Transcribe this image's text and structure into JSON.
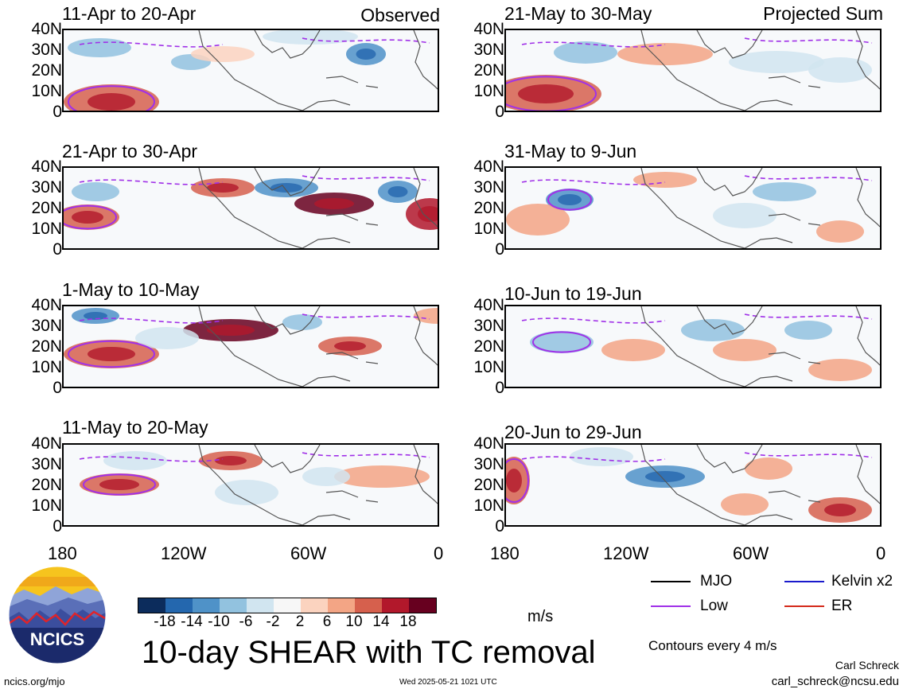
{
  "observed_label": "Observed",
  "projected_label": "Projected Sum",
  "panels": {
    "obs1": "11-Apr to 20-Apr",
    "obs2": "21-Apr to 30-Apr",
    "obs3": "1-May to 10-May",
    "obs4": "11-May to 20-May",
    "proj1": "21-May to 30-May",
    "proj2": "31-May to 9-Jun",
    "proj3": "10-Jun to 19-Jun",
    "proj4": "20-Jun to 29-Jun"
  },
  "lat_labels": [
    "40N",
    "30N",
    "20N",
    "10N",
    "0"
  ],
  "lon_labels": [
    "180",
    "120W",
    "60W",
    "0"
  ],
  "legend": {
    "mjo": "MJO",
    "kelvin": "Kelvin x2",
    "low": "Low",
    "er": "ER",
    "colors": {
      "mjo": "#000000",
      "kelvin": "#1a1acc",
      "low": "#a030e8",
      "er": "#d42a1a"
    }
  },
  "colorbar": {
    "ticks": [
      "-18",
      "-14",
      "-10",
      "-6",
      "-2",
      "2",
      "6",
      "10",
      "14",
      "18"
    ],
    "colors": [
      "#0c2c5c",
      "#2467ae",
      "#4f92c8",
      "#92c2df",
      "#d1e5f0",
      "#f7f7f7",
      "#fbd3bf",
      "#f3a585",
      "#d6604d",
      "#b2182b",
      "#67001f"
    ],
    "unit": "m/s"
  },
  "title": "10-day SHEAR with TC removal",
  "logo_text": "NCICS",
  "contour_note": "Contours every 4 m/s",
  "author": "Carl Schreck",
  "email": "carl_schreck@ncsu.edu",
  "url": "ncics.org/mjo",
  "timestamp": "Wed 2025-05-21 1021 UTC"
}
